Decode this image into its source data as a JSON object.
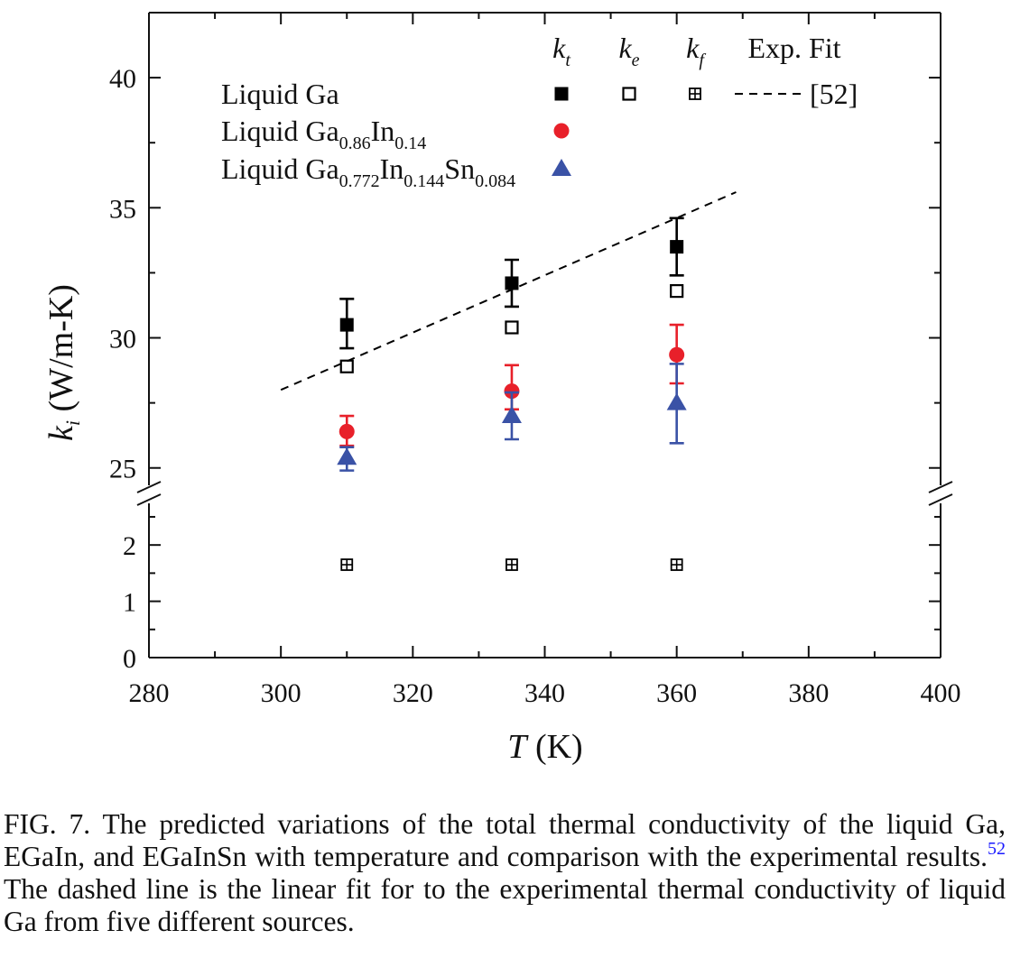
{
  "chart_data": {
    "type": "scatter",
    "xlabel_var": "T",
    "xlabel_unit": "(K)",
    "ylabel_var": "k",
    "ylabel_sub": "i",
    "ylabel_unit": "(W/m-K)",
    "xlim": [
      280,
      400
    ],
    "x_ticks": [
      280,
      300,
      320,
      340,
      360,
      380,
      400
    ],
    "upper_panel": {
      "ylim": [
        23.5,
        42.5
      ],
      "y_ticks": [
        25,
        30,
        35,
        40
      ]
    },
    "lower_panel": {
      "ylim": [
        0,
        2.9
      ],
      "y_ticks": [
        0,
        1,
        2
      ]
    },
    "axis_break": true,
    "legend": {
      "col_headers": [
        {
          "var": "k",
          "sub": "t"
        },
        {
          "var": "k",
          "sub": "e"
        },
        {
          "var": "k",
          "sub": "f"
        },
        {
          "text": "Exp. Fit"
        }
      ],
      "rows": [
        {
          "parts": [
            {
              "t": "Liquid Ga"
            }
          ]
        },
        {
          "parts": [
            {
              "t": "Liquid Ga"
            },
            {
              "t": "0.86",
              "sub": true
            },
            {
              "t": "In"
            },
            {
              "t": "0.14",
              "sub": true
            }
          ]
        },
        {
          "parts": [
            {
              "t": "Liquid Ga"
            },
            {
              "t": "0.772",
              "sub": true
            },
            {
              "t": "In"
            },
            {
              "t": "0.144",
              "sub": true
            },
            {
              "t": "Sn"
            },
            {
              "t": "0.084",
              "sub": true
            }
          ]
        }
      ],
      "exp_fit_ref": "[52]"
    },
    "series": [
      {
        "name": "Liquid Ga k_t",
        "marker": "filled-square",
        "color": "#000000",
        "x": [
          310,
          335,
          360
        ],
        "y": [
          30.5,
          32.1,
          33.5
        ],
        "err_lo": [
          0.9,
          0.9,
          1.1
        ],
        "err_hi": [
          1.0,
          0.9,
          1.1
        ]
      },
      {
        "name": "Liquid Ga k_e",
        "marker": "open-square",
        "color": "#000000",
        "x": [
          310,
          335,
          360
        ],
        "y": [
          28.9,
          30.4,
          31.8
        ]
      },
      {
        "name": "Liquid Ga k_f",
        "marker": "crossed-square",
        "color": "#000000",
        "x": [
          310,
          335,
          360
        ],
        "y": [
          1.65,
          1.65,
          1.65
        ]
      },
      {
        "name": "Liquid Ga0.86In0.14 k_t",
        "marker": "circle",
        "color": "#e8202a",
        "x": [
          310,
          335,
          360
        ],
        "y": [
          26.4,
          27.95,
          29.35
        ],
        "err_lo": [
          0.55,
          0.7,
          1.1
        ],
        "err_hi": [
          0.6,
          1.0,
          1.15
        ]
      },
      {
        "name": "Liquid Ga0.772In0.144Sn0.084 k_t",
        "marker": "triangle",
        "color": "#3a52a6",
        "x": [
          310,
          335,
          360
        ],
        "y": [
          25.4,
          27.0,
          27.5
        ],
        "err_lo": [
          0.5,
          0.9,
          1.55
        ],
        "err_hi": [
          0.4,
          0.9,
          1.5
        ]
      },
      {
        "name": "Exp. Fit [52]",
        "type": "line",
        "style": "dashed",
        "color": "#000000",
        "x": [
          300,
          369
        ],
        "y": [
          28.0,
          35.6
        ]
      }
    ]
  },
  "caption": {
    "text": "FIG. 7.  The predicted variations of the total thermal conductivity of the liquid Ga, EGaIn, and EGaInSn with temperature and comparison with the experimental results.",
    "ref": "52",
    "text2": " The dashed line is the linear fit for to the experimental thermal conductivity of liquid Ga from five different sources."
  }
}
